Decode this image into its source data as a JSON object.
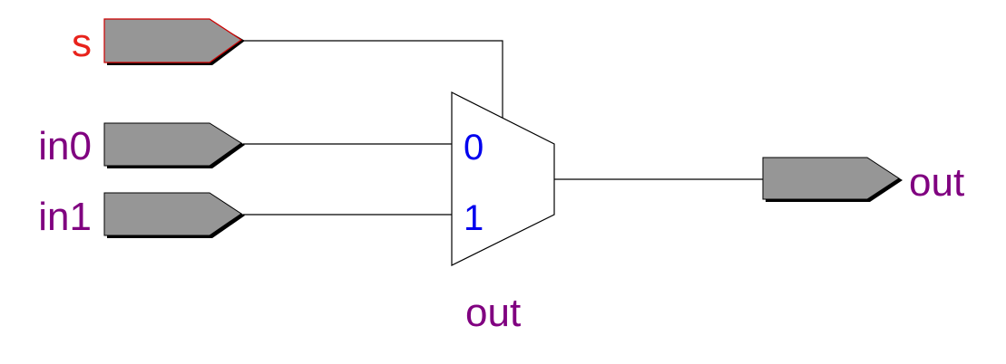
{
  "colors": {
    "select_port": "#e8231c",
    "data_port": "#800080",
    "mux_input_label": "#0000ee",
    "port_fill": "#969696",
    "port_edge": "#000000",
    "select_port_edge": "#cc0000",
    "wire": "#000000",
    "background": "#ffffff"
  },
  "ports": {
    "select": {
      "label": "s",
      "direction": "input",
      "icon": "input-port-arrow-icon"
    },
    "in0": {
      "label": "in0",
      "direction": "input",
      "icon": "input-port-arrow-icon"
    },
    "in1": {
      "label": "in1",
      "direction": "input",
      "icon": "input-port-arrow-icon"
    },
    "out": {
      "label": "out",
      "direction": "output",
      "icon": "output-port-arrow-icon"
    }
  },
  "mux": {
    "input0_label": "0",
    "input1_label": "1",
    "instance_label": "out",
    "icon": "multiplexer-trapezoid-icon"
  }
}
